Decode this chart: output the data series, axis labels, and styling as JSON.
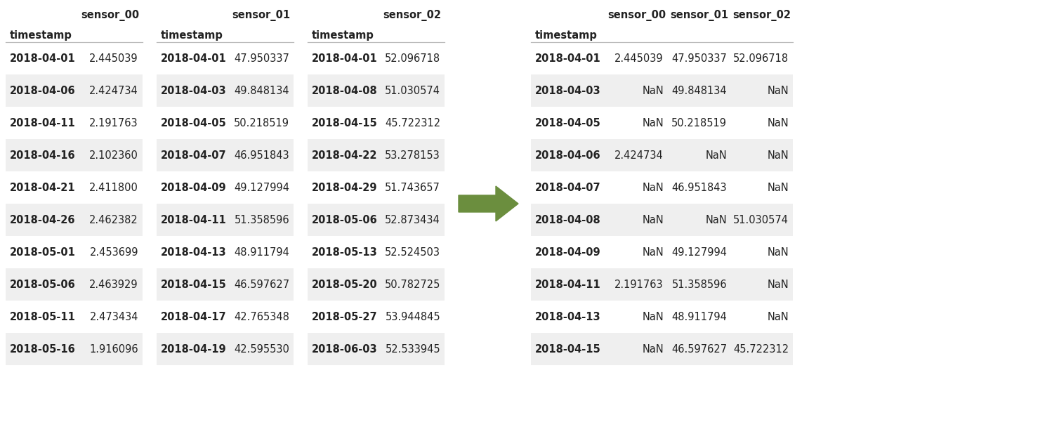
{
  "left_tables": [
    {
      "title": "sensor_00",
      "rows": [
        [
          "2018-04-01",
          "2.445039"
        ],
        [
          "2018-04-06",
          "2.424734"
        ],
        [
          "2018-04-11",
          "2.191763"
        ],
        [
          "2018-04-16",
          "2.102360"
        ],
        [
          "2018-04-21",
          "2.411800"
        ],
        [
          "2018-04-26",
          "2.462382"
        ],
        [
          "2018-05-01",
          "2.453699"
        ],
        [
          "2018-05-06",
          "2.463929"
        ],
        [
          "2018-05-11",
          "2.473434"
        ],
        [
          "2018-05-16",
          "1.916096"
        ]
      ]
    },
    {
      "title": "sensor_01",
      "rows": [
        [
          "2018-04-01",
          "47.950337"
        ],
        [
          "2018-04-03",
          "49.848134"
        ],
        [
          "2018-04-05",
          "50.218519"
        ],
        [
          "2018-04-07",
          "46.951843"
        ],
        [
          "2018-04-09",
          "49.127994"
        ],
        [
          "2018-04-11",
          "51.358596"
        ],
        [
          "2018-04-13",
          "48.911794"
        ],
        [
          "2018-04-15",
          "46.597627"
        ],
        [
          "2018-04-17",
          "42.765348"
        ],
        [
          "2018-04-19",
          "42.595530"
        ]
      ]
    },
    {
      "title": "sensor_02",
      "rows": [
        [
          "2018-04-01",
          "52.096718"
        ],
        [
          "2018-04-08",
          "51.030574"
        ],
        [
          "2018-04-15",
          "45.722312"
        ],
        [
          "2018-04-22",
          "53.278153"
        ],
        [
          "2018-04-29",
          "51.743657"
        ],
        [
          "2018-05-06",
          "52.873434"
        ],
        [
          "2018-05-13",
          "52.524503"
        ],
        [
          "2018-05-20",
          "50.782725"
        ],
        [
          "2018-05-27",
          "53.944845"
        ],
        [
          "2018-06-03",
          "52.533945"
        ]
      ]
    }
  ],
  "right_table": {
    "col_headers": [
      "timestamp",
      "sensor_00",
      "sensor_01",
      "sensor_02"
    ],
    "rows": [
      [
        "2018-04-01",
        "2.445039",
        "47.950337",
        "52.096718"
      ],
      [
        "2018-04-03",
        "NaN",
        "49.848134",
        "NaN"
      ],
      [
        "2018-04-05",
        "NaN",
        "50.218519",
        "NaN"
      ],
      [
        "2018-04-06",
        "2.424734",
        "NaN",
        "NaN"
      ],
      [
        "2018-04-07",
        "NaN",
        "46.951843",
        "NaN"
      ],
      [
        "2018-04-08",
        "NaN",
        "NaN",
        "51.030574"
      ],
      [
        "2018-04-09",
        "NaN",
        "49.127994",
        "NaN"
      ],
      [
        "2018-04-11",
        "2.191763",
        "51.358596",
        "NaN"
      ],
      [
        "2018-04-13",
        "NaN",
        "48.911794",
        "NaN"
      ],
      [
        "2018-04-15",
        "NaN",
        "46.597627",
        "45.722312"
      ]
    ]
  },
  "bg_color_light": "#efefef",
  "bg_color_white": "#ffffff",
  "text_color": "#222222",
  "header_color": "#222222",
  "title_color": "#222222",
  "arrow_color": "#6b8e3e",
  "font_size": 10.5,
  "header_font_size": 10.5,
  "title_font_size": 10.5
}
